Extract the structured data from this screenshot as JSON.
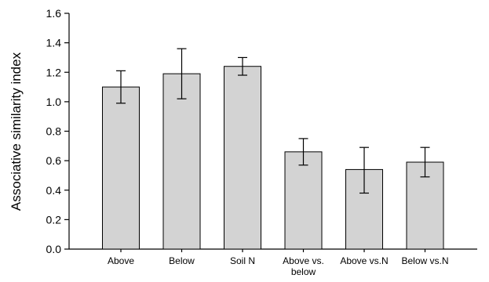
{
  "chart_data": {
    "type": "bar",
    "categories": [
      "Above",
      "Below",
      "Soil N",
      "Above vs.\nbelow",
      "Above vs.N",
      "Below vs.N"
    ],
    "values": [
      1.1,
      1.19,
      1.24,
      0.66,
      0.54,
      0.59
    ],
    "error_low": [
      0.99,
      1.02,
      1.18,
      0.57,
      0.38,
      0.49
    ],
    "error_high": [
      1.21,
      1.36,
      1.3,
      0.75,
      0.69,
      0.69
    ],
    "title": "",
    "xlabel": "",
    "ylabel": "Associative similarity index",
    "ylim": [
      0.0,
      1.6
    ],
    "yticks": [
      "0.0",
      "0.2",
      "0.4",
      "0.6",
      "0.8",
      "1.0",
      "1.2",
      "1.4",
      "1.6"
    ],
    "grid": false,
    "legend": "none",
    "colors": {
      "bar_fill": "#d3d3d3",
      "bar_edge": "#000000"
    }
  }
}
